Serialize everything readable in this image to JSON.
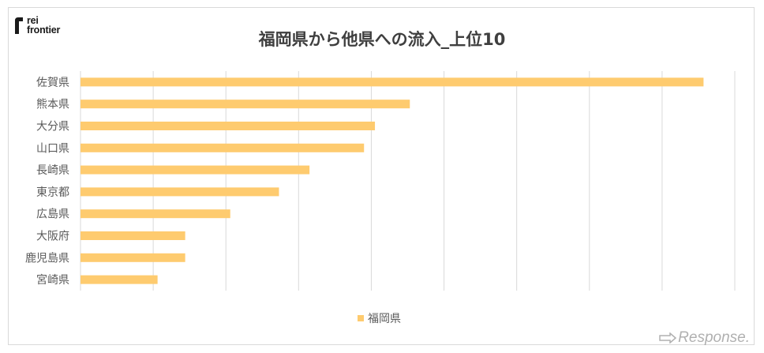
{
  "logo": {
    "line1": "rei",
    "line2": "frontier"
  },
  "watermark": {
    "text": "Response."
  },
  "colors": {
    "bar": "#fecb6f",
    "grid": "#d9d9d9",
    "title": "#3f3f3f",
    "label": "#595959"
  },
  "chart_data": {
    "type": "bar",
    "orientation": "horizontal",
    "title": "福岡県から他県への流入_上位10",
    "xlabel": "",
    "ylabel": "",
    "xlim": [
      0,
      9
    ],
    "grid": true,
    "legend_position": "bottom",
    "categories": [
      "佐賀県",
      "熊本県",
      "大分県",
      "山口県",
      "長崎県",
      "東京都",
      "広島県",
      "大阪府",
      "鹿児島県",
      "宮崎県"
    ],
    "series": [
      {
        "name": "福岡県",
        "values": [
          8.57,
          4.53,
          4.05,
          3.9,
          3.15,
          2.73,
          2.06,
          1.44,
          1.44,
          1.06
        ]
      }
    ]
  }
}
